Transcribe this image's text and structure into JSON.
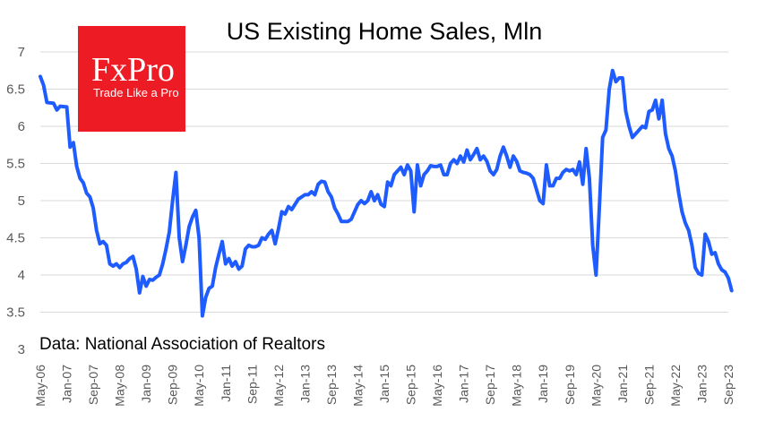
{
  "chart_data": {
    "type": "line",
    "title": "US Existing Home Sales, Mln",
    "source": "Data: National Association of Realtors",
    "logo": {
      "name": "FxPro",
      "tagline": "Trade Like a Pro",
      "color": "#ED1C24"
    },
    "line_color": "#1F5CFF",
    "grid": true,
    "ylim": [
      3,
      7
    ],
    "yticks": [
      3,
      3.5,
      4,
      4.5,
      5,
      5.5,
      6,
      6.5,
      7
    ],
    "ytick_labels": [
      "3",
      "3.5",
      "4",
      "4.5",
      "5",
      "5.5",
      "6",
      "6.5",
      "7"
    ],
    "xlim": [
      "2006-05",
      "2023-09"
    ],
    "xtick_labels": [
      "May-06",
      "Jan-07",
      "Sep-07",
      "May-08",
      "Jan-09",
      "Sep-09",
      "May-10",
      "Jan-11",
      "Sep-11",
      "May-12",
      "Jan-13",
      "Sep-13",
      "May-14",
      "Jan-15",
      "Sep-15",
      "May-16",
      "Jan-17",
      "Sep-17",
      "May-18",
      "Jan-19",
      "Sep-19",
      "May-20",
      "Jan-21",
      "Sep-21",
      "May-22",
      "Jan-23",
      "Sep-23"
    ],
    "series": [
      {
        "values": [
          [
            "2006-05",
            6.67
          ],
          [
            "2006-06",
            6.55
          ],
          [
            "2006-07",
            6.32
          ],
          [
            "2006-09",
            6.31
          ],
          [
            "2006-10",
            6.22
          ],
          [
            "2006-11",
            6.27
          ],
          [
            "2007-01",
            6.26
          ],
          [
            "2007-02",
            5.72
          ],
          [
            "2007-03",
            5.78
          ],
          [
            "2007-04",
            5.46
          ],
          [
            "2007-05",
            5.3
          ],
          [
            "2007-06",
            5.24
          ],
          [
            "2007-07",
            5.1
          ],
          [
            "2007-08",
            5.05
          ],
          [
            "2007-09",
            4.9
          ],
          [
            "2007-10",
            4.6
          ],
          [
            "2007-11",
            4.42
          ],
          [
            "2007-12",
            4.45
          ],
          [
            "2008-01",
            4.4
          ],
          [
            "2008-02",
            4.15
          ],
          [
            "2008-03",
            4.12
          ],
          [
            "2008-04",
            4.15
          ],
          [
            "2008-05",
            4.1
          ],
          [
            "2008-06",
            4.15
          ],
          [
            "2008-07",
            4.17
          ],
          [
            "2008-08",
            4.22
          ],
          [
            "2008-09",
            4.25
          ],
          [
            "2008-10",
            4.08
          ],
          [
            "2008-11",
            3.76
          ],
          [
            "2008-12",
            3.98
          ],
          [
            "2009-01",
            3.85
          ],
          [
            "2009-02",
            3.94
          ],
          [
            "2009-03",
            3.93
          ],
          [
            "2009-04",
            3.97
          ],
          [
            "2009-05",
            4.0
          ],
          [
            "2009-06",
            4.15
          ],
          [
            "2009-07",
            4.35
          ],
          [
            "2009-08",
            4.58
          ],
          [
            "2009-09",
            5.0
          ],
          [
            "2009-10",
            5.38
          ],
          [
            "2009-11",
            4.5
          ],
          [
            "2009-12",
            4.18
          ],
          [
            "2010-01",
            4.4
          ],
          [
            "2010-02",
            4.65
          ],
          [
            "2010-03",
            4.78
          ],
          [
            "2010-04",
            4.87
          ],
          [
            "2010-05",
            4.5
          ],
          [
            "2010-06",
            3.45
          ],
          [
            "2010-07",
            3.7
          ],
          [
            "2010-08",
            3.82
          ],
          [
            "2010-09",
            3.85
          ],
          [
            "2010-10",
            4.1
          ],
          [
            "2010-11",
            4.28
          ],
          [
            "2010-12",
            4.45
          ],
          [
            "2011-01",
            4.15
          ],
          [
            "2011-02",
            4.22
          ],
          [
            "2011-03",
            4.12
          ],
          [
            "2011-04",
            4.18
          ],
          [
            "2011-05",
            4.08
          ],
          [
            "2011-06",
            4.12
          ],
          [
            "2011-07",
            4.35
          ],
          [
            "2011-08",
            4.4
          ],
          [
            "2011-09",
            4.38
          ],
          [
            "2011-10",
            4.38
          ],
          [
            "2011-11",
            4.4
          ],
          [
            "2011-12",
            4.5
          ],
          [
            "2012-01",
            4.48
          ],
          [
            "2012-02",
            4.55
          ],
          [
            "2012-03",
            4.6
          ],
          [
            "2012-04",
            4.42
          ],
          [
            "2012-05",
            4.62
          ],
          [
            "2012-06",
            4.85
          ],
          [
            "2012-07",
            4.82
          ],
          [
            "2012-08",
            4.92
          ],
          [
            "2012-09",
            4.88
          ],
          [
            "2012-10",
            4.95
          ],
          [
            "2012-11",
            5.02
          ],
          [
            "2012-12",
            5.05
          ],
          [
            "2013-01",
            5.08
          ],
          [
            "2013-02",
            5.08
          ],
          [
            "2013-03",
            5.12
          ],
          [
            "2013-04",
            5.08
          ],
          [
            "2013-05",
            5.22
          ],
          [
            "2013-06",
            5.26
          ],
          [
            "2013-07",
            5.25
          ],
          [
            "2013-08",
            5.12
          ],
          [
            "2013-09",
            5.05
          ],
          [
            "2013-10",
            4.9
          ],
          [
            "2013-11",
            4.82
          ],
          [
            "2013-12",
            4.72
          ],
          [
            "2014-01",
            4.72
          ],
          [
            "2014-02",
            4.72
          ],
          [
            "2014-03",
            4.75
          ],
          [
            "2014-04",
            4.85
          ],
          [
            "2014-05",
            4.95
          ],
          [
            "2014-06",
            5.0
          ],
          [
            "2014-07",
            4.96
          ],
          [
            "2014-08",
            5.0
          ],
          [
            "2014-09",
            5.12
          ],
          [
            "2014-10",
            5.0
          ],
          [
            "2014-11",
            5.08
          ],
          [
            "2014-12",
            4.95
          ],
          [
            "2015-01",
            4.92
          ],
          [
            "2015-02",
            5.25
          ],
          [
            "2015-03",
            5.2
          ],
          [
            "2015-04",
            5.35
          ],
          [
            "2015-05",
            5.4
          ],
          [
            "2015-06",
            5.45
          ],
          [
            "2015-07",
            5.35
          ],
          [
            "2015-08",
            5.48
          ],
          [
            "2015-09",
            5.4
          ],
          [
            "2015-10",
            4.85
          ],
          [
            "2015-11",
            5.48
          ],
          [
            "2015-12",
            5.2
          ],
          [
            "2016-01",
            5.35
          ],
          [
            "2016-02",
            5.4
          ],
          [
            "2016-03",
            5.47
          ],
          [
            "2016-04",
            5.46
          ],
          [
            "2016-05",
            5.46
          ],
          [
            "2016-06",
            5.48
          ],
          [
            "2016-07",
            5.35
          ],
          [
            "2016-08",
            5.35
          ],
          [
            "2016-09",
            5.5
          ],
          [
            "2016-10",
            5.55
          ],
          [
            "2016-11",
            5.5
          ],
          [
            "2016-12",
            5.6
          ],
          [
            "2017-01",
            5.52
          ],
          [
            "2017-02",
            5.68
          ],
          [
            "2017-03",
            5.55
          ],
          [
            "2017-04",
            5.62
          ],
          [
            "2017-05",
            5.7
          ],
          [
            "2017-06",
            5.55
          ],
          [
            "2017-07",
            5.6
          ],
          [
            "2017-08",
            5.53
          ],
          [
            "2017-09",
            5.4
          ],
          [
            "2017-10",
            5.35
          ],
          [
            "2017-11",
            5.42
          ],
          [
            "2017-12",
            5.6
          ],
          [
            "2018-01",
            5.72
          ],
          [
            "2018-02",
            5.6
          ],
          [
            "2018-03",
            5.45
          ],
          [
            "2018-04",
            5.6
          ],
          [
            "2018-05",
            5.53
          ],
          [
            "2018-06",
            5.4
          ],
          [
            "2018-07",
            5.38
          ],
          [
            "2018-08",
            5.37
          ],
          [
            "2018-09",
            5.35
          ],
          [
            "2018-10",
            5.3
          ],
          [
            "2018-11",
            5.15
          ],
          [
            "2018-12",
            5.0
          ],
          [
            "2019-01",
            4.96
          ],
          [
            "2019-02",
            5.48
          ],
          [
            "2019-03",
            5.2
          ],
          [
            "2019-04",
            5.2
          ],
          [
            "2019-05",
            5.3
          ],
          [
            "2019-06",
            5.3
          ],
          [
            "2019-07",
            5.38
          ],
          [
            "2019-08",
            5.42
          ],
          [
            "2019-09",
            5.4
          ],
          [
            "2019-10",
            5.42
          ],
          [
            "2019-11",
            5.35
          ],
          [
            "2019-12",
            5.52
          ],
          [
            "2020-01",
            5.22
          ],
          [
            "2020-02",
            5.7
          ],
          [
            "2020-03",
            5.3
          ],
          [
            "2020-04",
            4.4
          ],
          [
            "2020-05",
            4.0
          ],
          [
            "2020-06",
            4.9
          ],
          [
            "2020-07",
            5.85
          ],
          [
            "2020-08",
            5.95
          ],
          [
            "2020-09",
            6.5
          ],
          [
            "2020-10",
            6.75
          ],
          [
            "2020-11",
            6.6
          ],
          [
            "2020-12",
            6.65
          ],
          [
            "2021-01",
            6.65
          ],
          [
            "2021-02",
            6.2
          ],
          [
            "2021-03",
            6.0
          ],
          [
            "2021-04",
            5.85
          ],
          [
            "2021-05",
            5.9
          ],
          [
            "2021-06",
            5.95
          ],
          [
            "2021-07",
            6.0
          ],
          [
            "2021-08",
            5.98
          ],
          [
            "2021-09",
            6.2
          ],
          [
            "2021-10",
            6.22
          ],
          [
            "2021-11",
            6.35
          ],
          [
            "2021-12",
            6.1
          ],
          [
            "2022-01",
            6.35
          ],
          [
            "2022-02",
            5.9
          ],
          [
            "2022-03",
            5.7
          ],
          [
            "2022-04",
            5.6
          ],
          [
            "2022-05",
            5.4
          ],
          [
            "2022-06",
            5.1
          ],
          [
            "2022-07",
            4.85
          ],
          [
            "2022-08",
            4.7
          ],
          [
            "2022-09",
            4.6
          ],
          [
            "2022-10",
            4.4
          ],
          [
            "2022-11",
            4.1
          ],
          [
            "2022-12",
            4.02
          ],
          [
            "2023-01",
            4.0
          ],
          [
            "2023-02",
            4.55
          ],
          [
            "2023-03",
            4.45
          ],
          [
            "2023-04",
            4.28
          ],
          [
            "2023-05",
            4.3
          ],
          [
            "2023-06",
            4.15
          ],
          [
            "2023-07",
            4.07
          ],
          [
            "2023-08",
            4.04
          ],
          [
            "2023-09",
            3.96
          ],
          [
            "2023-10",
            3.79
          ]
        ]
      }
    ]
  }
}
